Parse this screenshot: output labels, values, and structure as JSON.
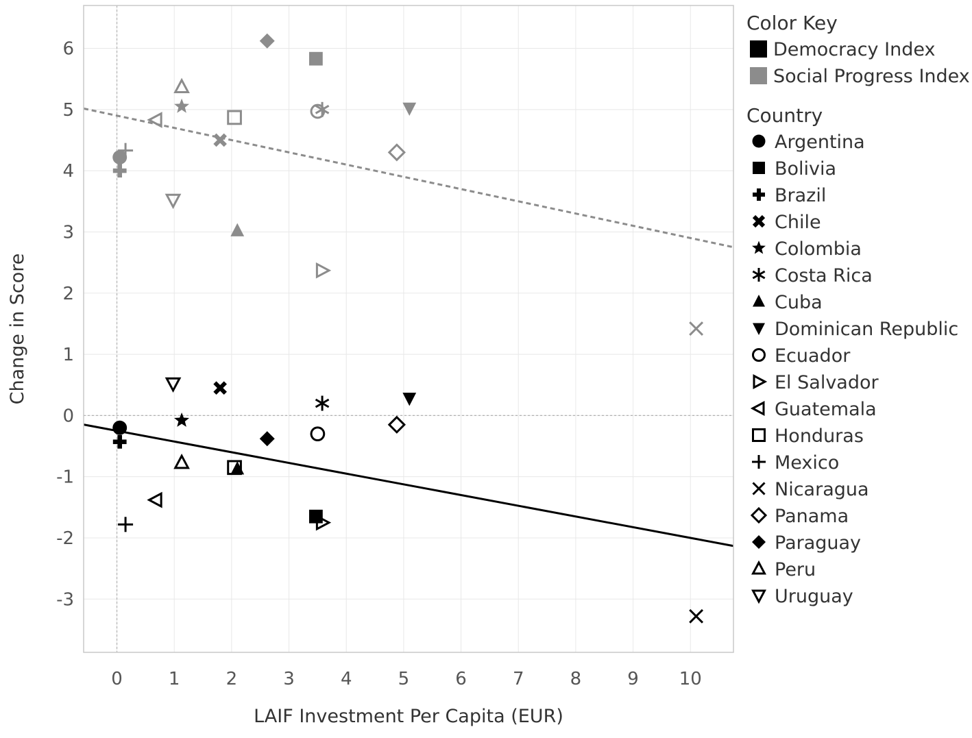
{
  "chart_data": {
    "type": "scatter",
    "xlabel": "LAIF Investment Per Capita (EUR)",
    "ylabel": "Change in Score",
    "xlim": [
      -0.58,
      10.75
    ],
    "ylim": [
      -3.87,
      6.7
    ],
    "x_ticks": [
      "0",
      "1",
      "2",
      "3",
      "4",
      "5",
      "6",
      "7",
      "8",
      "9",
      "10"
    ],
    "y_ticks": [
      "-3",
      "-2",
      "-1",
      "0",
      "1",
      "2",
      "3",
      "4",
      "5",
      "6"
    ],
    "grid": true,
    "reference_lines": {
      "x": 0,
      "y": 0
    },
    "colors": {
      "democracy": "#000000",
      "social": "#8c8c8c",
      "grid": "#e8e8e8",
      "ref": "#b0b0b0"
    },
    "legend_position": "right",
    "color_key": {
      "title": "Color Key",
      "entries": [
        {
          "label": "Democracy Index",
          "color": "#000000"
        },
        {
          "label": "Social Progress Index",
          "color": "#8c8c8c"
        }
      ]
    },
    "country_key": {
      "title": "Country",
      "entries": [
        {
          "label": "Argentina",
          "shape": "circle"
        },
        {
          "label": "Bolivia",
          "shape": "square"
        },
        {
          "label": "Brazil",
          "shape": "cross"
        },
        {
          "label": "Chile",
          "shape": "x-bold"
        },
        {
          "label": "Colombia",
          "shape": "star"
        },
        {
          "label": "Costa Rica",
          "shape": "asterisk"
        },
        {
          "label": "Cuba",
          "shape": "triangle-up"
        },
        {
          "label": "Dominican Republic",
          "shape": "triangle-down"
        },
        {
          "label": "Ecuador",
          "shape": "circle-open"
        },
        {
          "label": "El Salvador",
          "shape": "triangle-right-open"
        },
        {
          "label": "Guatemala",
          "shape": "triangle-left-open"
        },
        {
          "label": "Honduras",
          "shape": "square-open"
        },
        {
          "label": "Mexico",
          "shape": "plus"
        },
        {
          "label": "Nicaragua",
          "shape": "x"
        },
        {
          "label": "Panama",
          "shape": "diamond-open"
        },
        {
          "label": "Paraguay",
          "shape": "diamond"
        },
        {
          "label": "Peru",
          "shape": "triangle-up-open"
        },
        {
          "label": "Uruguay",
          "shape": "triangle-down-open"
        }
      ]
    },
    "series": [
      {
        "name": "Democracy Index",
        "color": "#000000",
        "trendline": {
          "slope": -0.175,
          "intercept": -0.25,
          "style": "solid"
        },
        "points": [
          {
            "country": "Argentina",
            "shape": "circle",
            "x": 0.05,
            "y": -0.2
          },
          {
            "country": "Bolivia",
            "shape": "square",
            "x": 3.47,
            "y": -1.65
          },
          {
            "country": "Brazil",
            "shape": "cross",
            "x": 0.05,
            "y": -0.43
          },
          {
            "country": "Chile",
            "shape": "x-bold",
            "x": 1.8,
            "y": 0.45
          },
          {
            "country": "Colombia",
            "shape": "star",
            "x": 1.13,
            "y": -0.08
          },
          {
            "country": "Costa Rica",
            "shape": "asterisk",
            "x": 3.58,
            "y": 0.2
          },
          {
            "country": "Cuba",
            "shape": "triangle-up",
            "x": 2.1,
            "y": -0.87
          },
          {
            "country": "Dominican Republic",
            "shape": "triangle-down",
            "x": 5.1,
            "y": 0.28
          },
          {
            "country": "Ecuador",
            "shape": "circle-open",
            "x": 3.5,
            "y": -0.3
          },
          {
            "country": "El Salvador",
            "shape": "triangle-right-open",
            "x": 3.58,
            "y": -1.75
          },
          {
            "country": "Guatemala",
            "shape": "triangle-left-open",
            "x": 0.68,
            "y": -1.38
          },
          {
            "country": "Honduras",
            "shape": "square-open",
            "x": 2.05,
            "y": -0.85
          },
          {
            "country": "Mexico",
            "shape": "plus",
            "x": 0.15,
            "y": -1.78
          },
          {
            "country": "Nicaragua",
            "shape": "x",
            "x": 10.1,
            "y": -3.28
          },
          {
            "country": "Panama",
            "shape": "diamond-open",
            "x": 4.88,
            "y": -0.15
          },
          {
            "country": "Paraguay",
            "shape": "diamond",
            "x": 2.62,
            "y": -0.38
          },
          {
            "country": "Peru",
            "shape": "triangle-up-open",
            "x": 1.13,
            "y": -0.77
          },
          {
            "country": "Uruguay",
            "shape": "triangle-down-open",
            "x": 0.98,
            "y": 0.52
          }
        ]
      },
      {
        "name": "Social Progress Index",
        "color": "#8c8c8c",
        "trendline": {
          "slope": -0.2,
          "intercept": 4.9,
          "style": "dashed"
        },
        "points": [
          {
            "country": "Argentina",
            "shape": "circle",
            "x": 0.05,
            "y": 4.22
          },
          {
            "country": "Bolivia",
            "shape": "square",
            "x": 3.47,
            "y": 5.83
          },
          {
            "country": "Brazil",
            "shape": "cross",
            "x": 0.05,
            "y": 4.0
          },
          {
            "country": "Chile",
            "shape": "x-bold",
            "x": 1.8,
            "y": 4.5
          },
          {
            "country": "Colombia",
            "shape": "star",
            "x": 1.13,
            "y": 5.05
          },
          {
            "country": "Costa Rica",
            "shape": "asterisk",
            "x": 3.58,
            "y": 5.0
          },
          {
            "country": "Cuba",
            "shape": "triangle-up",
            "x": 2.1,
            "y": 3.02
          },
          {
            "country": "Dominican Republic",
            "shape": "triangle-down",
            "x": 5.1,
            "y": 5.02
          },
          {
            "country": "Ecuador",
            "shape": "circle-open",
            "x": 3.5,
            "y": 4.97
          },
          {
            "country": "El Salvador",
            "shape": "triangle-right-open",
            "x": 3.58,
            "y": 2.37
          },
          {
            "country": "Guatemala",
            "shape": "triangle-left-open",
            "x": 0.68,
            "y": 4.83
          },
          {
            "country": "Honduras",
            "shape": "square-open",
            "x": 2.05,
            "y": 4.87
          },
          {
            "country": "Mexico",
            "shape": "plus",
            "x": 0.15,
            "y": 4.33
          },
          {
            "country": "Nicaragua",
            "shape": "x",
            "x": 10.1,
            "y": 1.42
          },
          {
            "country": "Panama",
            "shape": "diamond-open",
            "x": 4.88,
            "y": 4.3
          },
          {
            "country": "Paraguay",
            "shape": "diamond",
            "x": 2.62,
            "y": 6.12
          },
          {
            "country": "Peru",
            "shape": "triangle-up-open",
            "x": 1.13,
            "y": 5.37
          },
          {
            "country": "Uruguay",
            "shape": "triangle-down-open",
            "x": 0.98,
            "y": 3.52
          }
        ]
      }
    ]
  }
}
